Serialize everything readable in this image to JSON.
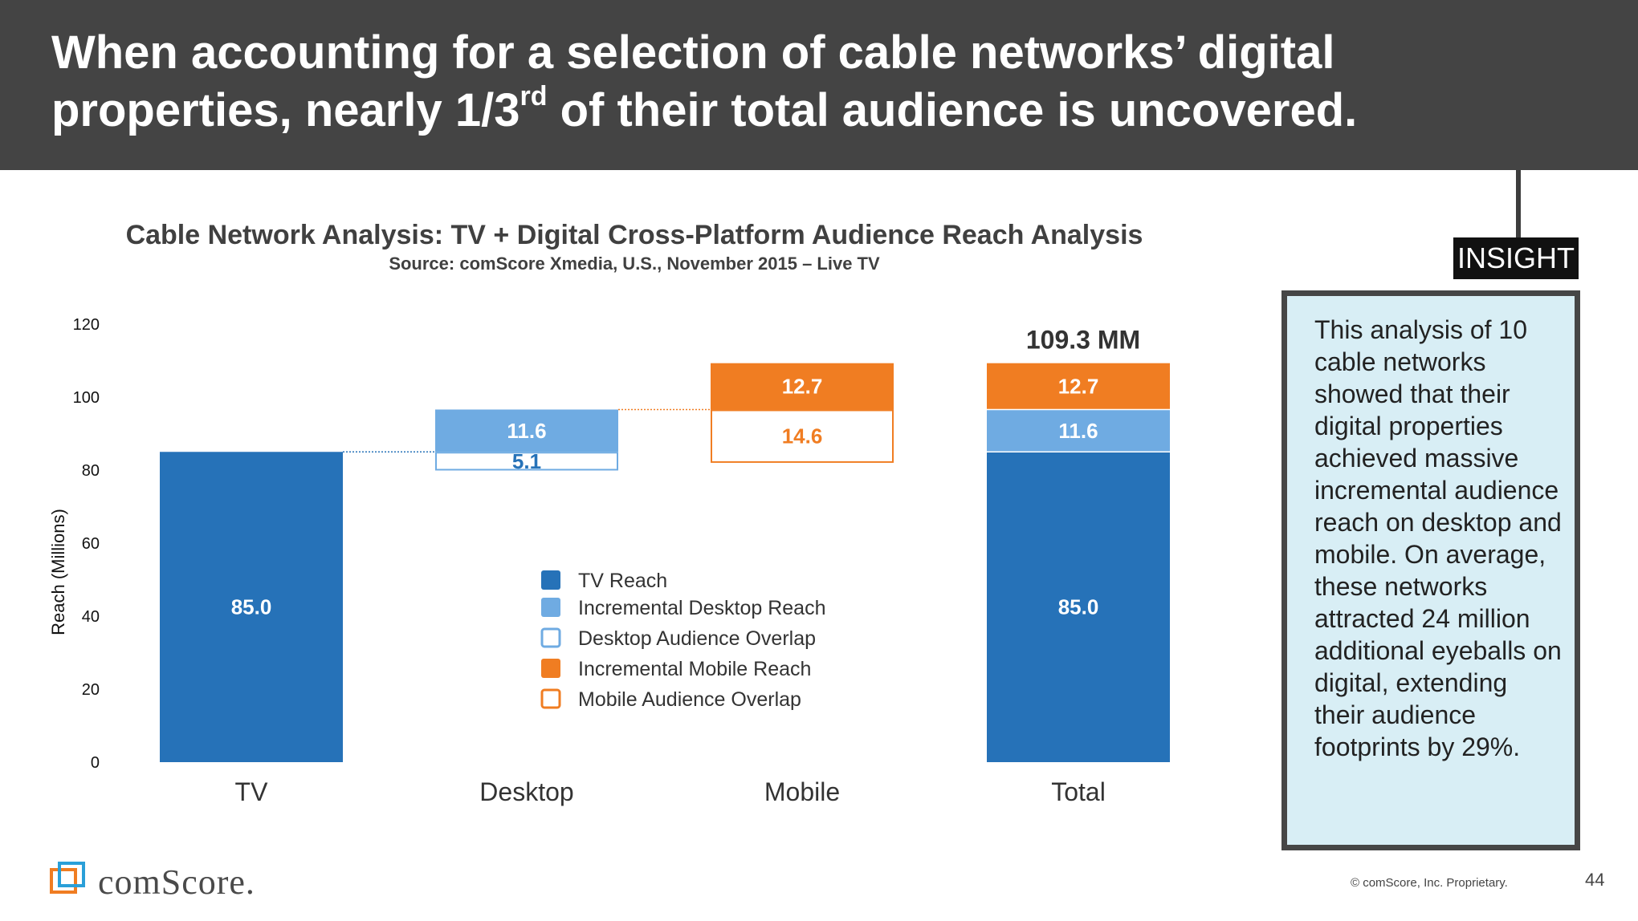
{
  "header": {
    "title_line1": "When accounting for a selection of cable networks’ digital",
    "title_line2_pre": "properties, nearly 1/3",
    "title_line2_sup": "rd",
    "title_line2_post": " of their total audience is uncovered."
  },
  "chart_data": {
    "type": "bar",
    "title": "Cable Network Analysis: TV + Digital Cross-Platform Audience Reach Analysis",
    "subtitle": "Source: comScore Xmedia, U.S., November 2015 – Live TV",
    "ylabel": "Reach (Millions)",
    "ylim": [
      0,
      120
    ],
    "yticks": [
      0,
      20,
      40,
      60,
      80,
      100,
      120
    ],
    "categories": [
      "TV",
      "Desktop",
      "Mobile",
      "Total"
    ],
    "total_label": "109.3 MM",
    "series": [
      {
        "name": "TV Reach",
        "color": "#2672b8",
        "style": "filled",
        "values": [
          85.0,
          null,
          null,
          85.0
        ]
      },
      {
        "name": "Incremental Desktop Reach",
        "color": "#6fabe2",
        "style": "filled",
        "values": [
          null,
          11.6,
          null,
          11.6
        ]
      },
      {
        "name": "Desktop Audience Overlap",
        "color": "#6fabe2",
        "style": "outline",
        "values": [
          null,
          5.1,
          null,
          null
        ]
      },
      {
        "name": "Incremental Mobile Reach",
        "color": "#f07d22",
        "style": "filled",
        "values": [
          null,
          null,
          12.7,
          12.7
        ]
      },
      {
        "name": "Mobile Audience Overlap",
        "color": "#f07d22",
        "style": "outline",
        "values": [
          null,
          null,
          14.6,
          null
        ]
      }
    ],
    "segments": [
      {
        "category": "TV",
        "series": 0,
        "base": 0,
        "value": 85.0,
        "label": "85.0",
        "label_color": "#ffffff"
      },
      {
        "category": "Desktop",
        "series": 2,
        "base": 79.9,
        "value": 5.1,
        "label": "5.1",
        "label_color": "#2672b8"
      },
      {
        "category": "Desktop",
        "series": 1,
        "base": 85.0,
        "value": 11.6,
        "label": "11.6",
        "label_color": "#ffffff"
      },
      {
        "category": "Mobile",
        "series": 4,
        "base": 82.0,
        "value": 14.6,
        "label": "14.6",
        "label_color": "#f07d22"
      },
      {
        "category": "Mobile",
        "series": 3,
        "base": 96.6,
        "value": 12.7,
        "label": "12.7",
        "label_color": "#ffffff"
      },
      {
        "category": "Total",
        "series": 0,
        "base": 0,
        "value": 85.0,
        "label": "85.0",
        "label_color": "#ffffff"
      },
      {
        "category": "Total",
        "series": 1,
        "base": 85.0,
        "value": 11.6,
        "label": "11.6",
        "label_color": "#ffffff"
      },
      {
        "category": "Total",
        "series": 3,
        "base": 96.6,
        "value": 12.7,
        "label": "12.7",
        "label_color": "#ffffff"
      }
    ],
    "connectors": [
      {
        "from": "TV",
        "to": "Desktop",
        "y": 85.0,
        "color": "#2672b8"
      },
      {
        "from": "Desktop",
        "to": "Mobile",
        "y": 96.6,
        "color": "#f07d22"
      }
    ],
    "legend_position": "center"
  },
  "insight": {
    "tag": "INSIGHT",
    "text": "This analysis of 10 cable networks showed that their digital properties achieved massive incremental audience reach on desktop and mobile. On average, these networks attracted 24 million additional eyeballs on digital, extending their audience footprints by 29%."
  },
  "footer": {
    "logo_text": "comScore.",
    "copyright": "© comScore, Inc. Proprietary.",
    "page_number": "44"
  }
}
